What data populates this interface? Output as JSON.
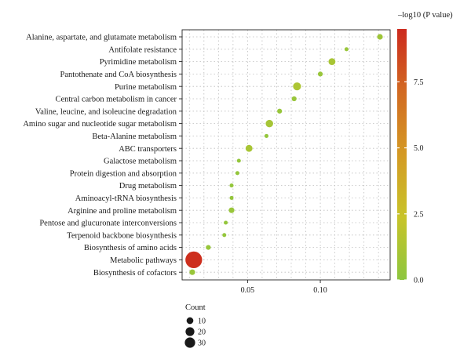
{
  "chart_data": {
    "type": "scatter",
    "title": "",
    "xlabel": "",
    "ylabel": "",
    "x_ticks": [
      "0.05",
      "0.10"
    ],
    "x_tick_values": [
      0.05,
      0.1
    ],
    "xlim": [
      0.005,
      0.148
    ],
    "categories": [
      "Alanine, aspartate, and glutamate metabolism",
      "Antifolate resistance",
      "Pyrimidine metabolism",
      "Pantothenate and CoA biosynthesis",
      "Purine metabolism",
      "Central carbon metabolism in cancer",
      "Valine, leucine, and isoleucine degradation",
      "Amino sugar and nucleotide sugar metabolism",
      "Beta-Alanine metabolism",
      "ABC transporters",
      "Galactose metabolism",
      "Protein digestion and absorption",
      "Drug metabolism",
      "Aminoacyl-tRNA biosynthesis",
      "Arginine and proline metabolism",
      "Pentose and glucuronate interconversions",
      "Terpenoid backbone biosynthesis",
      "Biosynthesis of amino acids",
      "Metabolic pathways",
      "Biosynthesis of cofactors"
    ],
    "x": [
      0.141,
      0.118,
      0.108,
      0.1,
      0.084,
      0.082,
      0.072,
      0.065,
      0.063,
      0.051,
      0.044,
      0.043,
      0.039,
      0.039,
      0.039,
      0.035,
      0.034,
      0.023,
      0.013,
      0.012
    ],
    "count": [
      4,
      2,
      6,
      3,
      8,
      3,
      3,
      7,
      2,
      6,
      2,
      2,
      2,
      2,
      4,
      2,
      2,
      3,
      35,
      4
    ],
    "neg_log10_p": [
      0.7,
      0.5,
      1.1,
      0.5,
      1.3,
      0.5,
      0.4,
      1.0,
      0.3,
      1.1,
      0.3,
      0.3,
      0.3,
      0.3,
      0.5,
      0.3,
      0.3,
      0.4,
      9.3,
      0.5
    ],
    "color_legend": {
      "title": "–log10 (P value)",
      "ticks": [
        "0.0",
        "2.5",
        "5.0",
        "7.5"
      ],
      "tick_values": [
        0,
        2.5,
        5.0,
        7.5
      ],
      "range": [
        0,
        9.5
      ],
      "colors": [
        "#8dc63f",
        "#c8c42a",
        "#d49a24",
        "#d26a22",
        "#cc2a1e"
      ]
    },
    "size_legend": {
      "title": "Count",
      "values": [
        10,
        20,
        30
      ],
      "labels": [
        "10",
        "20",
        "30"
      ]
    },
    "grid": true
  }
}
